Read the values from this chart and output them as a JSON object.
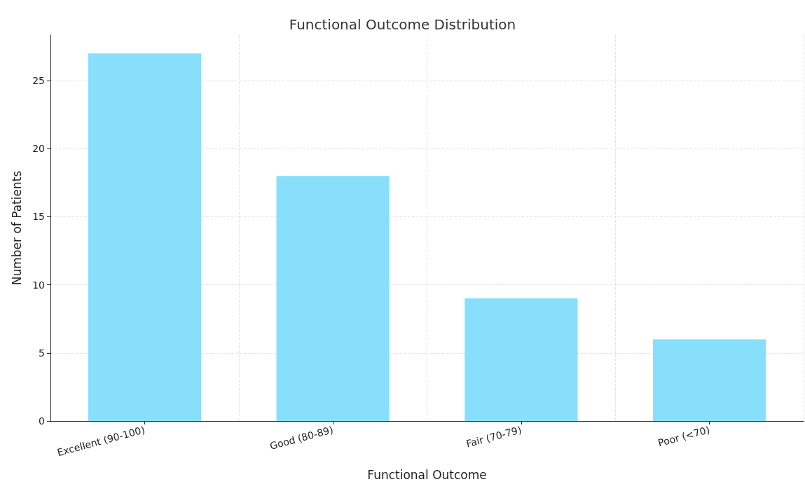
{
  "chart_data": {
    "type": "bar",
    "title": "Functional Outcome Distribution",
    "xlabel": "Functional Outcome",
    "ylabel": "Number of Patients",
    "categories": [
      "Excellent (90-100)",
      "Good (80-89)",
      "Fair (70-79)",
      "Poor (<70)"
    ],
    "values": [
      27,
      18,
      9,
      6
    ],
    "color": "#87dffb",
    "ylim": [
      0,
      28.35
    ],
    "yticks": [
      0,
      5,
      10,
      15,
      20,
      25
    ],
    "grid": true
  }
}
